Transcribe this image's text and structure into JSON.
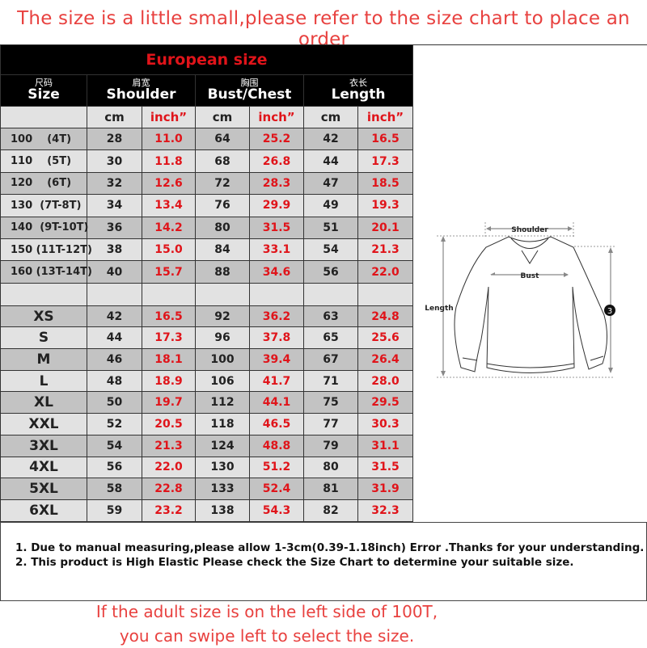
{
  "top_note": "The size is a little small,please refer to the size chart to place an order",
  "table": {
    "title": "European size",
    "headers": [
      {
        "cn": "尺码",
        "en": "Size"
      },
      {
        "cn": "肩宽",
        "en": "Shoulder"
      },
      {
        "cn": "胸围",
        "en": "Bust/Chest"
      },
      {
        "cn": "衣长",
        "en": "Length"
      }
    ],
    "units": [
      "cm",
      "inch”",
      "cm",
      "inch”",
      "cm",
      "inch”"
    ],
    "child_rows": [
      [
        "100    (4T)",
        "28",
        "11.0",
        "64",
        "25.2",
        "42",
        "16.5"
      ],
      [
        "110    (5T)",
        "30",
        "11.8",
        "68",
        "26.8",
        "44",
        "17.3"
      ],
      [
        "120    (6T)",
        "32",
        "12.6",
        "72",
        "28.3",
        "47",
        "18.5"
      ],
      [
        "130  (7T-8T)",
        "34",
        "13.4",
        "76",
        "29.9",
        "49",
        "19.3"
      ],
      [
        "140  (9T-10T)",
        "36",
        "14.2",
        "80",
        "31.5",
        "51",
        "20.1"
      ],
      [
        "150 (11T-12T)",
        "38",
        "15.0",
        "84",
        "33.1",
        "54",
        "21.3"
      ],
      [
        "160 (13T-14T)",
        "40",
        "15.7",
        "88",
        "34.6",
        "56",
        "22.0"
      ]
    ],
    "adult_rows": [
      [
        "XS",
        "42",
        "16.5",
        "92",
        "36.2",
        "63",
        "24.8"
      ],
      [
        "S",
        "44",
        "17.3",
        "96",
        "37.8",
        "65",
        "25.6"
      ],
      [
        "M",
        "46",
        "18.1",
        "100",
        "39.4",
        "67",
        "26.4"
      ],
      [
        "L",
        "48",
        "18.9",
        "106",
        "41.7",
        "71",
        "28.0"
      ],
      [
        "XL",
        "50",
        "19.7",
        "112",
        "44.1",
        "75",
        "29.5"
      ],
      [
        "XXL",
        "52",
        "20.5",
        "118",
        "46.5",
        "77",
        "30.3"
      ],
      [
        "3XL",
        "54",
        "21.3",
        "124",
        "48.8",
        "79",
        "31.1"
      ],
      [
        "4XL",
        "56",
        "22.0",
        "130",
        "51.2",
        "80",
        "31.5"
      ],
      [
        "5XL",
        "58",
        "22.8",
        "133",
        "52.4",
        "81",
        "31.9"
      ],
      [
        "6XL",
        "59",
        "23.2",
        "138",
        "54.3",
        "82",
        "32.3"
      ]
    ]
  },
  "diagram": {
    "shoulder": "Shoulder",
    "bust": "Bust",
    "length": "Length",
    "badge": "3"
  },
  "notes": [
    "1. Due to manual measuring,please allow 1-3cm(0.39-1.18inch) Error .Thanks for your understanding.",
    "2. This product is High Elastic Please check the Size Chart to determine your suitable size."
  ],
  "bottom_note": [
    "If the adult size is on the left side of 100T,",
    "you can swipe left to select the size."
  ],
  "colors": {
    "accent_red": "#e0141a",
    "note_red": "#e8413f",
    "row_dark": "#c3c3c3",
    "row_light": "#e2e2e2"
  }
}
